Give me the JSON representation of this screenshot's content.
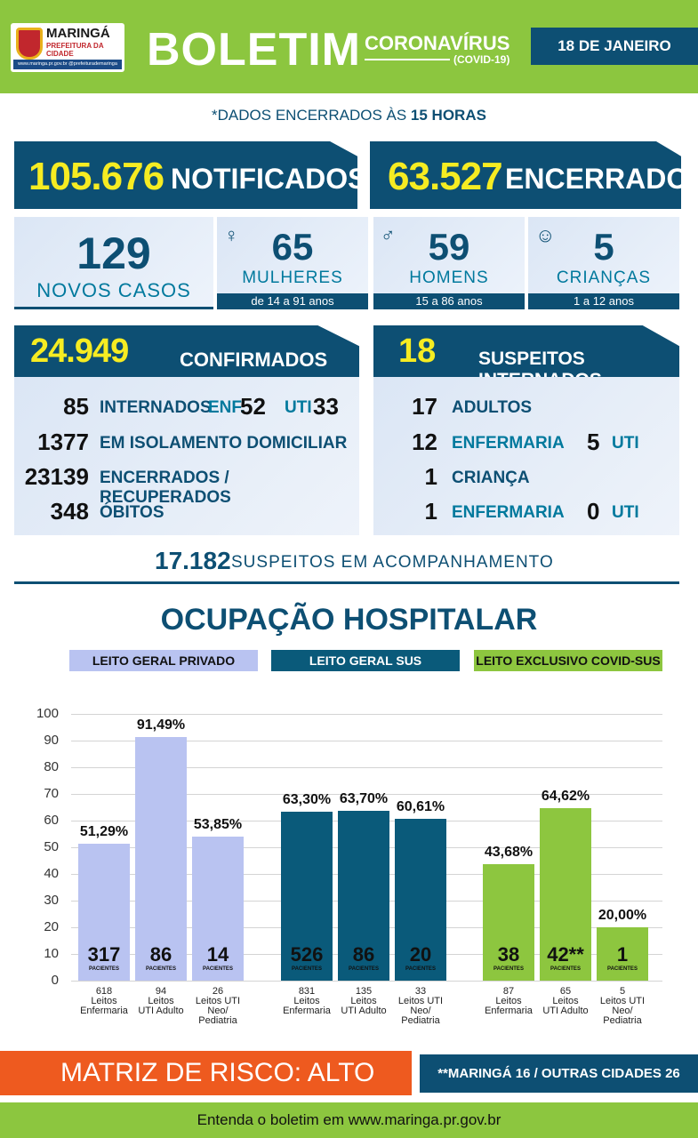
{
  "header": {
    "logo_title": "MARINGÁ",
    "logo_subtitle": "PREFEITURA DA CIDADE",
    "logo_footer": "www.maringa.pr.gov.br  @prefeiturademaringa",
    "title": "BOLETIM",
    "subtitle": "CORONAVÍRUS",
    "subtitle2": "(COVID-19)",
    "date": "18 DE JANEIRO"
  },
  "closing_prefix": "*DADOS ENCERRADOS ÀS ",
  "closing_hour": "15 HORAS",
  "notificados": {
    "value": "105.676",
    "label": "NOTIFICADOS"
  },
  "encerrados": {
    "value": "63.527",
    "label": "ENCERRADOS"
  },
  "new_cases": {
    "value": "129",
    "label": "NOVOS CASOS"
  },
  "women": {
    "value": "65",
    "label": "MULHERES",
    "range": "de 14 a 91 anos",
    "icon": "woman-icon"
  },
  "men": {
    "value": "59",
    "label": "HOMENS",
    "range": "15 a 86 anos",
    "icon": "man-icon"
  },
  "children": {
    "value": "5",
    "label": "CRIANÇAS",
    "range": "1 a 12 anos",
    "icon": "baby-icon"
  },
  "confirmed": {
    "value": "24.949",
    "label": "CONFIRMADOS",
    "internados": "85",
    "internados_label": "INTERNADOS",
    "enf_label": "ENF.",
    "enf": "52",
    "uti_label": "UTI",
    "uti": "33",
    "isolamento": "1377",
    "isolamento_label": "EM ISOLAMENTO DOMICILIAR",
    "recuperados": "23139",
    "recuperados_label": "ENCERRADOS / RECUPERADOS",
    "obitos": "348",
    "obitos_label": "ÓBITOS"
  },
  "suspects_hosp": {
    "value": "18",
    "label": "SUSPEITOS INTERNADOS",
    "adultos": "17",
    "adultos_label": "ADULTOS",
    "adult_enf": "12",
    "adult_enf_label": "ENFERMARIA",
    "adult_uti": "5",
    "adult_uti_label": "UTI",
    "crianca": "1",
    "crianca_label": "CRIANÇA",
    "child_enf": "1",
    "child_enf_label": "ENFERMARIA",
    "child_uti": "0",
    "child_uti_label": "UTI"
  },
  "monitoring": {
    "value": "17.182",
    "label": "SUSPEITOS EM ACOMPANHAMENTO"
  },
  "occupancy_title": "OCUPAÇÃO HOSPITALAR",
  "categories": [
    {
      "label": "LEITO GERAL PRIVADO",
      "color": "#b9c3f1",
      "text_color": "#111111"
    },
    {
      "label": "LEITO GERAL SUS",
      "color": "#0a5a7a",
      "text_color": "#ffffff"
    },
    {
      "label": "LEITO EXCLUSIVO COVID-SUS",
      "color": "#8dc63f",
      "text_color": "#111111"
    }
  ],
  "chart_data": {
    "type": "bar",
    "ylim": [
      0,
      100
    ],
    "yticks": [
      "0",
      "10",
      "20",
      "30",
      "40",
      "50",
      "60",
      "70",
      "80",
      "90",
      "100"
    ],
    "groups": [
      {
        "name": "LEITO GERAL PRIVADO",
        "color": "#b9c3f1",
        "bars": [
          {
            "pct": 51.29,
            "pct_label": "51,29%",
            "patients": "317",
            "capacity": "618",
            "line1": "Leitos",
            "line2": "Enfermaria",
            "line3": ""
          },
          {
            "pct": 91.49,
            "pct_label": "91,49%",
            "patients": "86",
            "capacity": "94",
            "line1": "Leitos",
            "line2": "UTI Adulto",
            "line3": ""
          },
          {
            "pct": 53.85,
            "pct_label": "53,85%",
            "patients": "14",
            "capacity": "26",
            "line1": "Leitos UTI",
            "line2": "Neo/",
            "line3": "Pediatria"
          }
        ]
      },
      {
        "name": "LEITO GERAL SUS",
        "color": "#0a5a7a",
        "bars": [
          {
            "pct": 63.3,
            "pct_label": "63,30%",
            "patients": "526",
            "capacity": "831",
            "line1": "Leitos",
            "line2": "Enfermaria",
            "line3": ""
          },
          {
            "pct": 63.7,
            "pct_label": "63,70%",
            "patients": "86",
            "capacity": "135",
            "line1": "Leitos",
            "line2": "UTI Adulto",
            "line3": ""
          },
          {
            "pct": 60.61,
            "pct_label": "60,61%",
            "patients": "20",
            "capacity": "33",
            "line1": "Leitos UTI",
            "line2": "Neo/",
            "line3": "Pediatria"
          }
        ]
      },
      {
        "name": "LEITO EXCLUSIVO COVID-SUS",
        "color": "#8dc63f",
        "bars": [
          {
            "pct": 43.68,
            "pct_label": "43,68%",
            "patients": "38",
            "capacity": "87",
            "line1": "Leitos",
            "line2": "Enfermaria",
            "line3": ""
          },
          {
            "pct": 64.62,
            "pct_label": "64,62%",
            "patients": "42**",
            "capacity": "65",
            "line1": "Leitos",
            "line2": "UTI Adulto",
            "line3": ""
          },
          {
            "pct": 20.0,
            "pct_label": "20,00%",
            "patients": "1",
            "capacity": "5",
            "line1": "Leitos UTI",
            "line2": "Neo/",
            "line3": "Pediatria"
          }
        ]
      }
    ],
    "patients_label": "PACIENTES"
  },
  "risk": "MATRIZ DE RISCO: ALTO",
  "cities": "**MARINGÁ 16 / OUTRAS CIDADES 26",
  "footer": "Entenda o boletim em www.maringa.pr.gov.br"
}
